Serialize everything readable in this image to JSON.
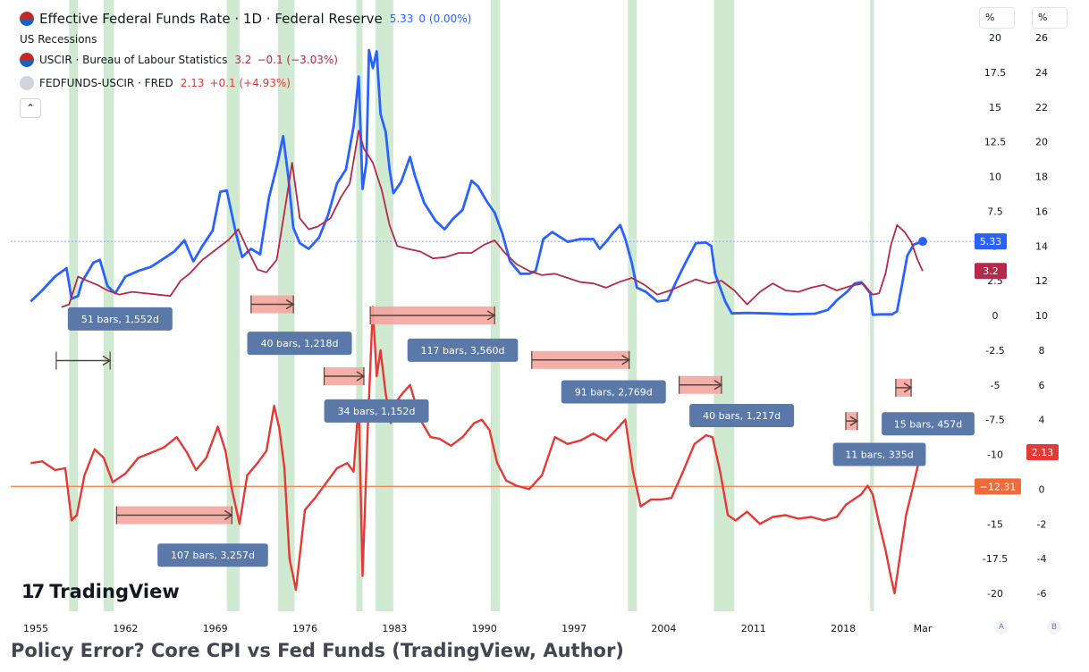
{
  "header": {
    "main_title": "Effective Federal Funds Rate · 1D · Federal Reserve",
    "main_value": "5.33",
    "main_change": "0 (0.00%)",
    "recessions_label": "US Recessions",
    "uscir_label": "USCIR · Bureau of Labour Statistics",
    "uscir_value": "3.2",
    "uscir_change": "−0.1 (−3.03%)",
    "spread_label": "FEDFUNDS-USCIR · FRED",
    "spread_value": "2.13",
    "spread_change": "+0.1 (+4.93%)",
    "collapse_icon": "chevron-up-icon",
    "unit_a": "%",
    "unit_b": "%",
    "scale_a": "A",
    "scale_b": "B"
  },
  "logo_text": "TradingView",
  "caption": "Policy Error? Core CPI vs Fed Funds (TradingView, Author)",
  "colors": {
    "fedfunds": "#2962ff",
    "cpi": "#b5294a",
    "spread": "#e53935",
    "recession": "#c8e6c9",
    "arrow_fill": "#f4a6a0",
    "label_bg": "#5a78a8",
    "hline_blue": "#90a4f4",
    "hline_orange": "#ef8a5a"
  },
  "chart_data": {
    "type": "line",
    "title": "Effective Federal Funds Rate · 1D · Federal Reserve",
    "x_ticks": [
      "1955",
      "1962",
      "1969",
      "1976",
      "1983",
      "1990",
      "1997",
      "2004",
      "2011",
      "2018",
      "Mar"
    ],
    "x_tick_years": [
      1955,
      1962,
      1969,
      1976,
      1983,
      1990,
      1997,
      2004,
      2011,
      2018,
      2024.2
    ],
    "axis_a": {
      "unit": "%",
      "ticks": [
        "20",
        "17.5",
        "15",
        "12.5",
        "10",
        "7.5",
        "5",
        "2.5",
        "0",
        "-2.5",
        "-5",
        "-7.5",
        "-10",
        "-12.5",
        "-15",
        "-17.5",
        "-20"
      ],
      "ylim": [
        -20,
        20
      ]
    },
    "axis_b": {
      "unit": "%",
      "ticks": [
        "26",
        "24",
        "22",
        "20",
        "18",
        "16",
        "14",
        "12",
        "10",
        "8",
        "6",
        "4",
        "2",
        "0",
        "-2",
        "-4",
        "-6"
      ],
      "ylim": [
        -6,
        26
      ]
    },
    "price_labels": [
      {
        "text": "5.33",
        "axis": "A",
        "value": 5.33,
        "color": "#2962ff"
      },
      {
        "text": "3.2",
        "axis": "A",
        "value": 3.2,
        "color": "#b5294a"
      },
      {
        "text": "2.13",
        "axis": "B",
        "value": 2.13,
        "color": "#e53935"
      },
      {
        "text": "−12.31",
        "axis": "A",
        "value": -12.31,
        "color": "#ef6c3a"
      }
    ],
    "recessions": [
      [
        1957.6,
        1958.3
      ],
      [
        1960.3,
        1961.1
      ],
      [
        1969.9,
        1970.9
      ],
      [
        1973.9,
        1975.2
      ],
      [
        1980.0,
        1980.5
      ],
      [
        1981.5,
        1982.9
      ],
      [
        1990.5,
        1991.2
      ],
      [
        2001.2,
        2001.9
      ],
      [
        2007.9,
        2009.5
      ],
      [
        2020.1,
        2020.4
      ]
    ],
    "series": [
      {
        "name": "Effective Federal Funds Rate",
        "axis": "A",
        "x": [
          1954.6,
          1955.5,
          1956.5,
          1957.4,
          1957.8,
          1958.3,
          1958.6,
          1959.5,
          1960.0,
          1960.6,
          1961.2,
          1962.0,
          1963.0,
          1964.0,
          1965.0,
          1965.8,
          1966.6,
          1967.3,
          1968.0,
          1968.8,
          1969.4,
          1969.9,
          1970.6,
          1971.1,
          1971.8,
          1972.5,
          1973.2,
          1973.8,
          1974.3,
          1974.7,
          1975.1,
          1975.6,
          1976.3,
          1977.1,
          1977.8,
          1978.5,
          1979.2,
          1979.8,
          1980.2,
          1980.5,
          1980.8,
          1981.0,
          1981.3,
          1981.6,
          1981.9,
          1982.3,
          1982.6,
          1982.9,
          1983.5,
          1984.2,
          1984.6,
          1985.3,
          1986.2,
          1986.9,
          1987.5,
          1988.3,
          1989.0,
          1989.5,
          1990.2,
          1990.8,
          1991.4,
          1992.0,
          1992.8,
          1993.5,
          1994.0,
          1994.6,
          1995.3,
          1996.5,
          1997.5,
          1998.5,
          1999.0,
          1999.5,
          2000.0,
          2000.6,
          2001.0,
          2001.5,
          2001.9,
          2002.6,
          2003.5,
          2004.3,
          2005.0,
          2005.7,
          2006.5,
          2007.3,
          2007.7,
          2008.0,
          2008.4,
          2008.8,
          2009.3,
          2010.5,
          2012.0,
          2014.0,
          2015.8,
          2016.8,
          2017.5,
          2018.3,
          2018.9,
          2019.4,
          2019.7,
          2020.1,
          2020.3,
          2021.0,
          2021.8,
          2022.2,
          2022.6,
          2023.0,
          2023.5,
          2024.2
        ],
        "y": [
          1.0,
          1.8,
          2.8,
          3.4,
          1.2,
          1.4,
          2.4,
          3.8,
          4.0,
          2.1,
          1.6,
          2.8,
          3.2,
          3.5,
          4.1,
          4.6,
          5.4,
          3.9,
          5.0,
          6.1,
          8.9,
          9.0,
          6.0,
          4.2,
          4.8,
          4.4,
          8.5,
          10.7,
          12.9,
          10.0,
          6.3,
          5.2,
          4.8,
          5.6,
          7.2,
          9.5,
          10.5,
          13.6,
          17.2,
          9.1,
          11.0,
          19.1,
          17.8,
          19.0,
          14.5,
          13.2,
          10.5,
          8.8,
          9.6,
          11.4,
          10.0,
          8.1,
          6.8,
          6.2,
          6.9,
          7.6,
          9.7,
          9.3,
          8.2,
          7.4,
          5.9,
          3.9,
          3.0,
          3.0,
          3.2,
          5.5,
          6.0,
          5.3,
          5.5,
          5.5,
          4.8,
          5.3,
          5.9,
          6.5,
          5.5,
          3.8,
          2.0,
          1.7,
          1.0,
          1.1,
          2.5,
          3.8,
          5.2,
          5.25,
          5.0,
          3.0,
          2.0,
          1.0,
          0.15,
          0.18,
          0.15,
          0.09,
          0.13,
          0.4,
          1.1,
          1.7,
          2.3,
          2.4,
          2.1,
          1.6,
          0.05,
          0.08,
          0.08,
          0.3,
          2.3,
          4.3,
          5.1,
          5.33
        ]
      },
      {
        "name": "USCIR",
        "axis": "A",
        "x": [
          1957.0,
          1957.6,
          1958.3,
          1959.0,
          1959.8,
          1960.6,
          1961.5,
          1962.5,
          1963.5,
          1964.5,
          1965.5,
          1966.3,
          1967.0,
          1968.0,
          1969.0,
          1970.0,
          1970.8,
          1971.5,
          1972.3,
          1973.0,
          1973.8,
          1974.5,
          1975.0,
          1975.6,
          1976.3,
          1977.0,
          1978.0,
          1978.8,
          1979.5,
          1980.2,
          1980.6,
          1981.3,
          1982.0,
          1982.6,
          1983.2,
          1984.0,
          1985.0,
          1986.0,
          1987.0,
          1988.0,
          1989.0,
          1990.0,
          1990.8,
          1991.6,
          1992.5,
          1993.5,
          1994.5,
          1995.5,
          1996.5,
          1997.5,
          1998.5,
          1999.5,
          2000.5,
          2001.5,
          2002.5,
          2003.5,
          2004.5,
          2005.5,
          2006.5,
          2007.5,
          2008.5,
          2009.5,
          2010.5,
          2011.5,
          2012.5,
          2013.5,
          2014.5,
          2015.5,
          2016.5,
          2017.5,
          2018.5,
          2019.5,
          2020.3,
          2020.8,
          2021.3,
          2021.7,
          2022.2,
          2022.8,
          2023.3,
          2023.8,
          2024.2
        ],
        "y": [
          0.6,
          0.8,
          2.8,
          2.5,
          2.2,
          1.8,
          1.5,
          1.7,
          1.6,
          1.5,
          1.4,
          2.5,
          3.0,
          4.0,
          4.7,
          5.4,
          6.2,
          4.8,
          3.3,
          3.1,
          4.0,
          8.0,
          11.0,
          7.0,
          6.2,
          6.4,
          7.0,
          8.5,
          9.5,
          13.3,
          12.0,
          11.0,
          9.0,
          6.5,
          5.0,
          4.8,
          4.6,
          4.1,
          4.2,
          4.5,
          4.5,
          5.1,
          5.4,
          4.5,
          3.7,
          3.2,
          2.9,
          3.0,
          2.7,
          2.4,
          2.3,
          2.0,
          2.4,
          2.7,
          2.2,
          1.5,
          1.8,
          2.2,
          2.6,
          2.3,
          2.5,
          1.8,
          0.8,
          1.7,
          2.3,
          1.8,
          1.7,
          2.0,
          2.2,
          1.8,
          2.1,
          2.3,
          1.5,
          1.6,
          3.0,
          5.0,
          6.5,
          6.0,
          5.3,
          4.0,
          3.2
        ]
      },
      {
        "name": "FEDFUNDS-USCIR",
        "axis": "B",
        "x": [
          1954.6,
          1955.5,
          1956.5,
          1957.3,
          1957.8,
          1958.2,
          1958.8,
          1959.6,
          1960.3,
          1961.0,
          1962.0,
          1963.0,
          1964.0,
          1965.0,
          1966.0,
          1966.8,
          1967.5,
          1968.3,
          1969.2,
          1969.8,
          1970.3,
          1970.9,
          1971.5,
          1972.3,
          1973.0,
          1973.6,
          1974.0,
          1974.4,
          1974.8,
          1975.3,
          1976.0,
          1976.8,
          1977.8,
          1978.5,
          1979.3,
          1979.8,
          1980.2,
          1980.5,
          1980.9,
          1981.3,
          1981.6,
          1981.9,
          1982.3,
          1982.7,
          1983.1,
          1983.6,
          1984.2,
          1985.0,
          1985.8,
          1986.5,
          1987.4,
          1988.3,
          1989.2,
          1989.8,
          1990.4,
          1991.0,
          1991.7,
          1992.5,
          1993.5,
          1994.5,
          1995.5,
          1996.5,
          1997.5,
          1998.5,
          1999.5,
          2000.5,
          2001.0,
          2001.6,
          2002.2,
          2003.0,
          2003.8,
          2004.6,
          2005.5,
          2006.4,
          2007.3,
          2007.8,
          2008.4,
          2009.0,
          2009.6,
          2010.5,
          2011.5,
          2012.5,
          2013.5,
          2014.5,
          2015.5,
          2016.5,
          2017.5,
          2018.2,
          2018.8,
          2019.4,
          2019.9,
          2020.3,
          2020.8,
          2021.3,
          2021.7,
          2022.0,
          2022.4,
          2022.9,
          2023.4,
          2023.9,
          2024.2
        ],
        "y": [
          1.5,
          1.6,
          1.1,
          1.2,
          -1.8,
          -1.5,
          0.8,
          2.3,
          1.8,
          0.4,
          0.9,
          1.8,
          2.1,
          2.4,
          3.0,
          2.1,
          1.1,
          1.8,
          3.6,
          2.2,
          0.0,
          -2.0,
          0.8,
          1.5,
          2.2,
          4.8,
          3.5,
          1.2,
          -4.0,
          -5.8,
          -1.2,
          -0.5,
          0.5,
          1.2,
          1.5,
          1.0,
          5.0,
          -5.0,
          3.5,
          10.5,
          6.5,
          8.0,
          5.5,
          3.8,
          5.0,
          5.5,
          6.0,
          4.0,
          3.0,
          2.9,
          2.5,
          3.0,
          3.8,
          4.0,
          3.4,
          1.5,
          0.5,
          0.2,
          0.0,
          0.8,
          3.0,
          2.6,
          2.8,
          3.2,
          2.8,
          3.6,
          4.0,
          1.0,
          -1.0,
          -0.6,
          -0.6,
          -0.5,
          1.0,
          2.6,
          3.1,
          3.0,
          1.0,
          -1.5,
          -1.8,
          -1.3,
          -2.0,
          -1.6,
          -1.5,
          -1.7,
          -1.6,
          -1.8,
          -1.6,
          -0.9,
          -0.6,
          -0.3,
          0.2,
          -0.3,
          -2.0,
          -3.5,
          -5.0,
          -6.0,
          -4.0,
          -1.5,
          0.0,
          1.6,
          2.13
        ]
      }
    ],
    "end_marker": {
      "series": "Effective Federal Funds Rate",
      "x": 2024.2,
      "y": 5.33
    },
    "measurements": [
      {
        "text": "51 bars, 1,552d",
        "from": 1956.6,
        "to": 1960.8,
        "axis": "B",
        "y": 7.4,
        "label_axis": "B",
        "label_y": 9.8,
        "label_x": 1957.5,
        "style": "arrow"
      },
      {
        "text": "40 bars, 1,218d",
        "from": 1971.8,
        "to": 1975.1,
        "axis": "A",
        "y": 0.8,
        "label_axis": "A",
        "label_y": -2.0,
        "label_x": 1971.5,
        "style": "box"
      },
      {
        "text": "117 bars, 3,560d",
        "from": 1981.1,
        "to": 1990.8,
        "axis": "A",
        "y": 0.0,
        "label_axis": "A",
        "label_y": -2.5,
        "label_x": 1984.0,
        "style": "box"
      },
      {
        "text": "34 bars, 1,152d",
        "from": 1977.5,
        "to": 1980.6,
        "axis": "B",
        "y": 6.5,
        "label_axis": "B",
        "label_y": 4.5,
        "label_x": 1977.5,
        "style": "box"
      },
      {
        "text": "107 bars, 3,257d",
        "from": 1961.3,
        "to": 1970.3,
        "axis": "B",
        "y": -1.5,
        "label_axis": "B",
        "label_y": -3.8,
        "label_x": 1964.5,
        "style": "box"
      },
      {
        "text": "91 bars, 2,769d",
        "from": 1993.7,
        "to": 2001.3,
        "axis": "A",
        "y": -3.2,
        "label_axis": "A",
        "label_y": -5.5,
        "label_x": 1996.0,
        "style": "box"
      },
      {
        "text": "40 bars, 1,217d",
        "from": 2005.2,
        "to": 2008.5,
        "axis": "A",
        "y": -5.0,
        "label_axis": "A",
        "label_y": -7.2,
        "label_x": 2006.0,
        "style": "box"
      },
      {
        "text": "11 bars, 335d",
        "from": 2018.2,
        "to": 2019.1,
        "axis": "A",
        "y": -7.6,
        "label_axis": "A",
        "label_y": -10.0,
        "label_x": 2017.2,
        "style": "box"
      },
      {
        "text": "15 bars, 457d",
        "from": 2022.1,
        "to": 2023.3,
        "axis": "A",
        "y": -5.2,
        "label_axis": "A",
        "label_y": -7.8,
        "label_x": 2021.0,
        "style": "box"
      }
    ],
    "hlines": [
      {
        "axis": "A",
        "y": 5.33,
        "color": "#90a4f4",
        "dashed": true
      },
      {
        "axis": "A",
        "y": -12.31,
        "color": "#ef8a5a",
        "dashed": false
      }
    ]
  }
}
